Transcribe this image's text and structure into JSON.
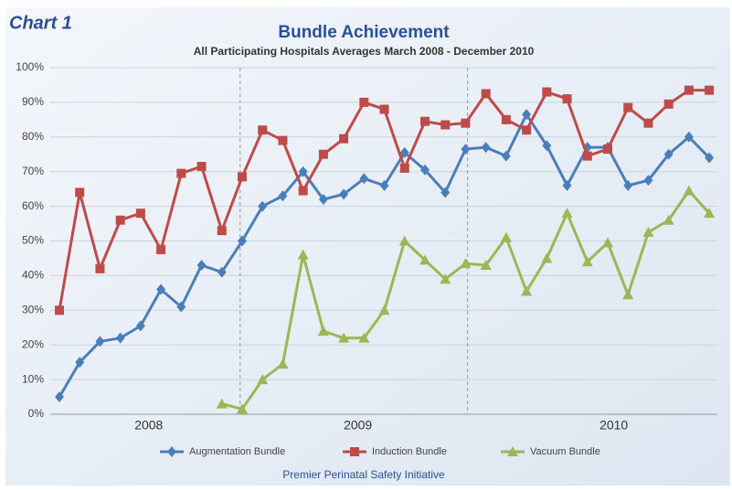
{
  "chart_data": {
    "type": "line",
    "label": "Chart 1",
    "title": "Bundle Achievement",
    "subtitle": "All Participating Hospitals Averages March 2008 - December 2010",
    "footer": "Premier Perinatal Safety Initiative",
    "x": [
      0,
      1,
      2,
      3,
      4,
      5,
      6,
      7,
      8,
      9,
      10,
      11,
      12,
      13,
      14,
      15,
      16,
      17,
      18,
      19,
      20,
      21,
      22,
      23,
      24,
      25,
      26,
      27,
      28,
      29,
      30,
      31,
      32
    ],
    "xlim": [
      -0.45,
      32.4
    ],
    "xticks": [
      {
        "value": 4.4,
        "label": "2008"
      },
      {
        "value": 14.7,
        "label": "2009"
      },
      {
        "value": 27.3,
        "label": "2010"
      }
    ],
    "year_dividers": [
      8.9,
      20.1
    ],
    "ylim": [
      0,
      100
    ],
    "yticks": [
      {
        "value": 0,
        "label": "0%"
      },
      {
        "value": 10,
        "label": "10%"
      },
      {
        "value": 20,
        "label": "20%"
      },
      {
        "value": 30,
        "label": "30%"
      },
      {
        "value": 40,
        "label": "40%"
      },
      {
        "value": 50,
        "label": "50%"
      },
      {
        "value": 60,
        "label": "60%"
      },
      {
        "value": 70,
        "label": "70%"
      },
      {
        "value": 80,
        "label": "80%"
      },
      {
        "value": 90,
        "label": "90%"
      },
      {
        "value": 100,
        "label": "100%"
      }
    ],
    "grid": true,
    "legend": "bottom",
    "series": [
      {
        "name": "Augmentation Bundle",
        "color": "#4a7ebb",
        "marker": "diamond",
        "values": [
          5,
          15,
          21,
          22,
          25.5,
          36,
          31,
          43,
          41,
          50,
          60,
          63,
          70,
          62,
          63.5,
          68,
          66,
          75.5,
          70.5,
          64,
          76.5,
          77,
          74.5,
          86.5,
          77.5,
          66,
          77,
          77,
          66,
          67.5,
          75,
          80,
          74
        ]
      },
      {
        "name": "Induction Bundle",
        "color": "#be4b48",
        "marker": "square",
        "values": [
          30,
          64,
          42,
          56,
          58,
          47.5,
          69.5,
          71.5,
          53,
          68.5,
          82,
          79,
          64.5,
          75,
          79.5,
          90,
          88,
          71,
          84.5,
          83.5,
          84,
          92.5,
          85,
          82,
          93,
          91,
          74.5,
          76.5,
          88.5,
          84,
          89.5,
          93.5,
          93.5
        ]
      },
      {
        "name": "Vacuum Bundle",
        "color": "#98b954",
        "marker": "triangle",
        "values": [
          null,
          null,
          null,
          null,
          null,
          null,
          null,
          null,
          3,
          1.5,
          10,
          14.5,
          46,
          24,
          22,
          22,
          30,
          50,
          44.5,
          39,
          43.5,
          43,
          51,
          35.5,
          45,
          58,
          44,
          49.5,
          34.5,
          52.5,
          56,
          64.5,
          58
        ]
      }
    ]
  }
}
